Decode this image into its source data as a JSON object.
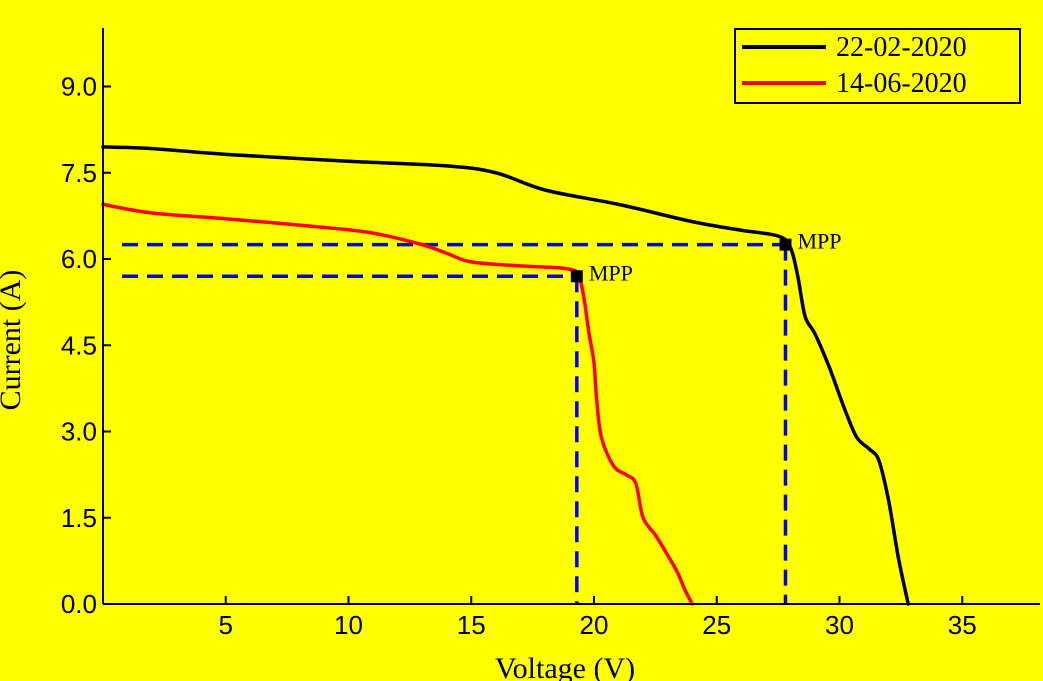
{
  "colors": {
    "background": "#ffff00",
    "axis": "#000000",
    "guide": "#0000ff"
  },
  "chart_data": {
    "type": "line",
    "title": "",
    "xlabel": "Voltage (V)",
    "ylabel": "Current (A)",
    "xlim": [
      0,
      37
    ],
    "ylim": [
      0,
      10
    ],
    "xticks": [
      5,
      10,
      15,
      20,
      25,
      30,
      35
    ],
    "yticks": [
      0.0,
      1.5,
      3.0,
      4.5,
      6.0,
      7.5,
      9.0
    ],
    "xtick_labels": [
      "5",
      "10",
      "15",
      "20",
      "25",
      "30",
      "35"
    ],
    "ytick_labels": [
      "0.0",
      "1.5",
      "3.0",
      "4.5",
      "6.0",
      "7.5",
      "9.0"
    ],
    "grid": false,
    "legend_position": "top-right",
    "series": [
      {
        "name": "22-02-2020",
        "color": "#000000",
        "x": [
          0,
          2,
          5,
          10,
          14,
          16,
          18,
          21,
          24,
          26,
          27.5,
          28,
          28.3,
          28.6,
          29.0,
          29.6,
          30.2,
          30.7,
          31.2,
          31.6,
          32.0,
          32.4,
          32.8
        ],
        "y": [
          7.95,
          7.92,
          7.82,
          7.7,
          7.62,
          7.5,
          7.2,
          6.95,
          6.65,
          6.5,
          6.4,
          6.2,
          5.7,
          5.0,
          4.7,
          4.1,
          3.4,
          2.9,
          2.7,
          2.5,
          1.8,
          0.8,
          0.0
        ]
      },
      {
        "name": "14-06-2020",
        "color": "#ff0000",
        "x": [
          0,
          2,
          5,
          9,
          11,
          13,
          14,
          15,
          17,
          18.5,
          19.2,
          19.4,
          19.6,
          19.8,
          20.0,
          20.1,
          20.3,
          20.8,
          21.3,
          21.7,
          22.0,
          22.5,
          23.0,
          23.4,
          23.7,
          24.0
        ],
        "y": [
          6.95,
          6.8,
          6.7,
          6.55,
          6.45,
          6.25,
          6.1,
          5.95,
          5.88,
          5.85,
          5.8,
          5.7,
          5.3,
          4.7,
          4.2,
          3.6,
          2.9,
          2.4,
          2.25,
          2.1,
          1.5,
          1.2,
          0.85,
          0.55,
          0.25,
          0.0
        ]
      }
    ],
    "annotations": [
      {
        "label": "MPP",
        "series": "22-02-2020",
        "x": 27.8,
        "y": 6.25
      },
      {
        "label": "MPP",
        "series": "14-06-2020",
        "x": 19.3,
        "y": 5.7
      }
    ]
  }
}
